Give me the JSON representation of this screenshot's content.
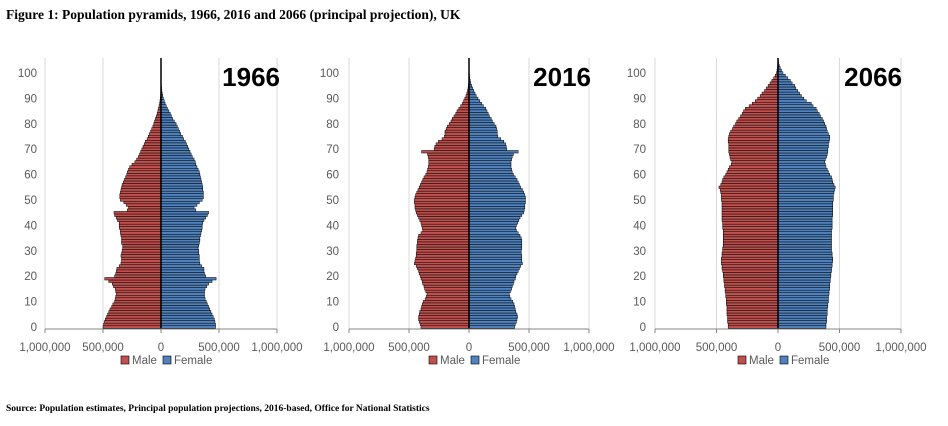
{
  "title": "Figure 1: Population pyramids, 1966, 2016 and 2066 (principal projection), UK",
  "source": "Source: Population estimates, Principal population projections, 2016-based, Office for National Statistics",
  "colors": {
    "male": "#c0504d",
    "female": "#4f81bd"
  },
  "chart_data": [
    {
      "type": "bar",
      "orientation": "horizontal-pyramid",
      "annotation": "1966",
      "ages": "0-105",
      "yticks": [
        "0",
        "10",
        "20",
        "30",
        "40",
        "50",
        "60",
        "70",
        "80",
        "90",
        "100"
      ],
      "xticks": [
        "1,000,000",
        "500,000",
        "0",
        "500,000",
        "1,000,000"
      ],
      "xlim": [
        -1000000,
        1000000
      ],
      "ylim": [
        0,
        105
      ],
      "grid": "vertical",
      "legend": "bottom",
      "series": [
        {
          "name": "Male",
          "values": [
            500000,
            495000,
            490000,
            480000,
            470000,
            460000,
            450000,
            440000,
            425000,
            415000,
            400000,
            395000,
            390000,
            385000,
            390000,
            395000,
            410000,
            420000,
            450000,
            485000,
            400000,
            390000,
            385000,
            380000,
            360000,
            345000,
            340000,
            340000,
            345000,
            340000,
            335000,
            330000,
            330000,
            340000,
            340000,
            340000,
            345000,
            350000,
            350000,
            360000,
            360000,
            360000,
            375000,
            385000,
            400000,
            405000,
            290000,
            280000,
            300000,
            320000,
            350000,
            355000,
            355000,
            350000,
            345000,
            340000,
            335000,
            325000,
            315000,
            305000,
            295000,
            290000,
            280000,
            270000,
            250000,
            225000,
            210000,
            195000,
            185000,
            175000,
            165000,
            155000,
            145000,
            135000,
            120000,
            110000,
            100000,
            90000,
            80000,
            70000,
            62000,
            55000,
            48000,
            40000,
            33000,
            27000,
            22000,
            17000,
            12000,
            9000,
            6000,
            4000,
            3000,
            2000,
            1000,
            1000,
            0,
            0,
            0,
            0,
            0,
            0,
            0,
            0,
            0,
            0
          ]
        },
        {
          "name": "Female",
          "values": [
            470000,
            470000,
            465000,
            460000,
            450000,
            440000,
            430000,
            420000,
            410000,
            400000,
            390000,
            380000,
            375000,
            375000,
            375000,
            380000,
            395000,
            410000,
            440000,
            475000,
            385000,
            375000,
            370000,
            370000,
            350000,
            335000,
            330000,
            330000,
            330000,
            325000,
            325000,
            320000,
            325000,
            330000,
            335000,
            335000,
            340000,
            345000,
            350000,
            355000,
            355000,
            360000,
            370000,
            385000,
            400000,
            410000,
            300000,
            285000,
            310000,
            330000,
            355000,
            365000,
            365000,
            365000,
            360000,
            360000,
            355000,
            350000,
            345000,
            340000,
            335000,
            330000,
            320000,
            310000,
            300000,
            295000,
            285000,
            270000,
            260000,
            250000,
            240000,
            230000,
            220000,
            210000,
            195000,
            185000,
            170000,
            160000,
            150000,
            140000,
            130000,
            115000,
            100000,
            90000,
            80000,
            68000,
            55000,
            45000,
            35000,
            28000,
            20000,
            15000,
            10000,
            7000,
            5000,
            3000,
            2000,
            1000,
            1000,
            0,
            0,
            0,
            0,
            0,
            0,
            0
          ]
        }
      ]
    },
    {
      "type": "bar",
      "orientation": "horizontal-pyramid",
      "annotation": "2016",
      "ages": "0-105",
      "yticks": [
        "0",
        "10",
        "20",
        "30",
        "40",
        "50",
        "60",
        "70",
        "80",
        "90",
        "100"
      ],
      "xticks": [
        "1,000,000",
        "500,000",
        "0",
        "500,000",
        "1,000,000"
      ],
      "xlim": [
        -1000000,
        1000000
      ],
      "ylim": [
        0,
        105
      ],
      "grid": "vertical",
      "legend": "bottom",
      "series": [
        {
          "name": "Male",
          "values": [
            400000,
            405000,
            415000,
            420000,
            420000,
            415000,
            410000,
            400000,
            395000,
            390000,
            380000,
            365000,
            355000,
            350000,
            360000,
            370000,
            375000,
            385000,
            390000,
            400000,
            405000,
            415000,
            420000,
            430000,
            440000,
            455000,
            450000,
            445000,
            440000,
            440000,
            435000,
            435000,
            435000,
            430000,
            430000,
            425000,
            420000,
            400000,
            385000,
            390000,
            395000,
            400000,
            410000,
            420000,
            430000,
            440000,
            445000,
            450000,
            450000,
            455000,
            455000,
            450000,
            445000,
            435000,
            425000,
            415000,
            405000,
            395000,
            385000,
            375000,
            360000,
            350000,
            345000,
            340000,
            335000,
            335000,
            335000,
            340000,
            345000,
            395000,
            290000,
            285000,
            275000,
            255000,
            225000,
            205000,
            200000,
            200000,
            190000,
            180000,
            165000,
            150000,
            140000,
            125000,
            110000,
            100000,
            85000,
            70000,
            55000,
            45000,
            35000,
            25000,
            18000,
            12000,
            8000,
            5000,
            3000,
            2000,
            1000,
            1000,
            0,
            0,
            0,
            0,
            0,
            0
          ]
        },
        {
          "name": "Female",
          "values": [
            380000,
            385000,
            395000,
            400000,
            405000,
            400000,
            390000,
            385000,
            380000,
            375000,
            365000,
            350000,
            340000,
            335000,
            345000,
            355000,
            360000,
            370000,
            375000,
            385000,
            390000,
            400000,
            410000,
            420000,
            430000,
            445000,
            440000,
            440000,
            440000,
            435000,
            435000,
            440000,
            440000,
            440000,
            440000,
            435000,
            425000,
            410000,
            395000,
            390000,
            395000,
            405000,
            415000,
            425000,
            440000,
            455000,
            460000,
            465000,
            465000,
            470000,
            470000,
            470000,
            465000,
            455000,
            445000,
            430000,
            420000,
            410000,
            400000,
            385000,
            370000,
            360000,
            355000,
            350000,
            350000,
            350000,
            355000,
            360000,
            370000,
            410000,
            315000,
            310000,
            305000,
            290000,
            265000,
            240000,
            235000,
            235000,
            230000,
            225000,
            210000,
            195000,
            185000,
            170000,
            160000,
            150000,
            140000,
            120000,
            105000,
            90000,
            75000,
            60000,
            50000,
            40000,
            30000,
            22000,
            15000,
            10000,
            6000,
            4000,
            2000,
            1000,
            1000,
            0,
            0,
            0
          ]
        }
      ]
    },
    {
      "type": "bar",
      "orientation": "horizontal-pyramid",
      "annotation": "2066",
      "ages": "0-105",
      "yticks": [
        "0",
        "10",
        "20",
        "30",
        "40",
        "50",
        "60",
        "70",
        "80",
        "90",
        "100"
      ],
      "xticks": [
        "1,000,000",
        "500,000",
        "0",
        "500,000",
        "1,000,000"
      ],
      "xlim": [
        -1000000,
        1000000
      ],
      "ylim": [
        0,
        105
      ],
      "grid": "vertical",
      "legend": "bottom",
      "series": [
        {
          "name": "Male",
          "values": [
            405000,
            405000,
            410000,
            410000,
            410000,
            415000,
            415000,
            415000,
            415000,
            420000,
            420000,
            420000,
            425000,
            425000,
            430000,
            430000,
            435000,
            435000,
            440000,
            440000,
            445000,
            445000,
            450000,
            455000,
            455000,
            460000,
            460000,
            460000,
            455000,
            455000,
            450000,
            450000,
            445000,
            445000,
            445000,
            445000,
            445000,
            445000,
            445000,
            450000,
            450000,
            450000,
            455000,
            455000,
            455000,
            455000,
            455000,
            455000,
            455000,
            455000,
            460000,
            460000,
            460000,
            465000,
            470000,
            480000,
            465000,
            455000,
            450000,
            440000,
            425000,
            415000,
            405000,
            395000,
            380000,
            375000,
            385000,
            390000,
            395000,
            400000,
            400000,
            400000,
            400000,
            405000,
            405000,
            400000,
            395000,
            385000,
            370000,
            360000,
            345000,
            335000,
            320000,
            305000,
            290000,
            280000,
            265000,
            235000,
            210000,
            185000,
            165000,
            145000,
            130000,
            110000,
            95000,
            80000,
            65000,
            50000,
            35000,
            22000,
            12000,
            8000,
            5000,
            3000,
            2000,
            1000
          ]
        },
        {
          "name": "Female",
          "values": [
            390000,
            390000,
            395000,
            395000,
            395000,
            400000,
            400000,
            400000,
            405000,
            405000,
            410000,
            410000,
            410000,
            415000,
            415000,
            420000,
            420000,
            420000,
            425000,
            425000,
            430000,
            430000,
            435000,
            435000,
            440000,
            440000,
            445000,
            445000,
            440000,
            440000,
            435000,
            435000,
            435000,
            435000,
            435000,
            435000,
            435000,
            435000,
            435000,
            440000,
            440000,
            440000,
            440000,
            440000,
            445000,
            445000,
            445000,
            445000,
            445000,
            445000,
            450000,
            450000,
            450000,
            455000,
            460000,
            465000,
            455000,
            445000,
            440000,
            435000,
            420000,
            410000,
            400000,
            390000,
            385000,
            380000,
            385000,
            395000,
            400000,
            405000,
            405000,
            410000,
            410000,
            415000,
            420000,
            420000,
            410000,
            400000,
            395000,
            390000,
            380000,
            370000,
            360000,
            345000,
            335000,
            320000,
            310000,
            285000,
            270000,
            230000,
            210000,
            190000,
            175000,
            160000,
            145000,
            135000,
            115000,
            100000,
            80000,
            60000,
            40000,
            28000,
            18000,
            10000,
            5000,
            3000
          ]
        }
      ]
    }
  ]
}
